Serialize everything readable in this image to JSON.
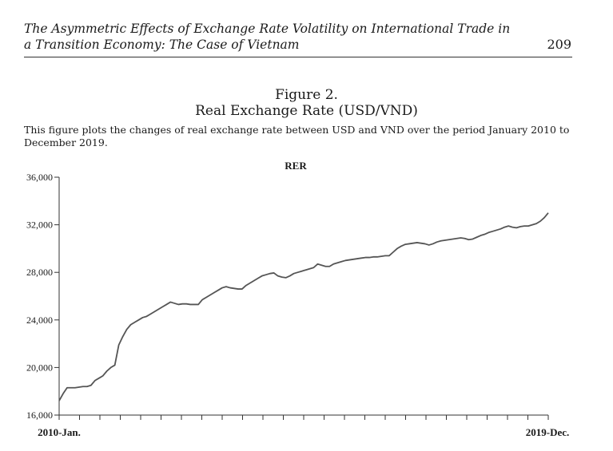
{
  "header": {
    "running_title": "The Asymmetric Effects of Exchange Rate Volatility on International Trade in a Transition Economy: The Case of Vietnam",
    "page_number": "209"
  },
  "figure": {
    "label": "Figure 2.",
    "title": "Real Exchange Rate (USD/VND)",
    "caption": "This figure plots the changes of real exchange rate between USD and VND over the period January 2010 to December 2019."
  },
  "chart_data": {
    "type": "line",
    "title": "RER",
    "xlabel": "",
    "ylabel": "",
    "x_start_label": "2010-Jan.",
    "x_end_label": "2019-Dec.",
    "ylim": [
      16000,
      36000
    ],
    "yticks": [
      16000,
      20000,
      24000,
      28000,
      32000,
      36000
    ],
    "ytick_labels": [
      "16,000",
      "20,000",
      "24,000",
      "28,000",
      "32,000",
      "36,000"
    ],
    "series": [
      {
        "name": "RER",
        "color": "#555555",
        "values": [
          17200,
          17800,
          18300,
          18300,
          18300,
          18350,
          18400,
          18400,
          18500,
          18900,
          19100,
          19300,
          19700,
          20000,
          20200,
          21900,
          22600,
          23200,
          23600,
          23800,
          24000,
          24200,
          24300,
          24500,
          24700,
          24900,
          25100,
          25300,
          25500,
          25400,
          25300,
          25350,
          25350,
          25300,
          25300,
          25300,
          25700,
          25900,
          26100,
          26300,
          26500,
          26700,
          26800,
          26700,
          26650,
          26600,
          26600,
          26900,
          27100,
          27300,
          27500,
          27700,
          27800,
          27900,
          27950,
          27700,
          27600,
          27550,
          27700,
          27900,
          28000,
          28100,
          28200,
          28300,
          28400,
          28700,
          28600,
          28500,
          28500,
          28700,
          28800,
          28900,
          29000,
          29050,
          29100,
          29150,
          29200,
          29250,
          29250,
          29300,
          29300,
          29350,
          29400,
          29400,
          29700,
          30000,
          30200,
          30350,
          30400,
          30450,
          30500,
          30450,
          30400,
          30300,
          30400,
          30550,
          30650,
          30700,
          30750,
          30800,
          30850,
          30900,
          30850,
          30750,
          30800,
          30950,
          31100,
          31200,
          31350,
          31450,
          31550,
          31650,
          31800,
          31900,
          31800,
          31750,
          31850,
          31900,
          31900,
          32000,
          32100,
          32300,
          32600,
          33000
        ]
      }
    ]
  }
}
